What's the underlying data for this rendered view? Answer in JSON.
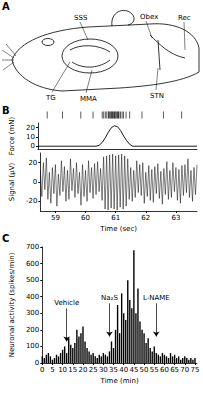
{
  "diagram": {
    "panel": "A",
    "labels": [
      "SSS",
      "Obex",
      "Rec",
      "TG",
      "MMA",
      "STN"
    ]
  },
  "chart_data": [
    {
      "panel": "B",
      "type": "raster",
      "tick_labels": false,
      "color": "#000000",
      "xlim": [
        58.5,
        63.7
      ],
      "x": [
        58.8,
        59.3,
        59.9,
        60.3,
        60.6,
        60.65,
        60.7,
        60.75,
        60.8,
        60.82,
        60.85,
        60.88,
        60.9,
        60.93,
        60.95,
        60.98,
        61.0,
        61.02,
        61.05,
        61.08,
        61.1,
        61.13,
        61.15,
        61.2,
        61.25,
        61.3,
        61.38,
        61.5,
        61.9,
        62.6,
        63.2
      ]
    },
    {
      "type": "line",
      "ylabel": "Force (mN)",
      "tick_labels": "y",
      "color": "#000000",
      "xlim": [
        58.5,
        63.7
      ],
      "ylim": [
        -3,
        25
      ],
      "yticks": [
        0,
        10,
        20
      ],
      "x": [
        58.5,
        60.4,
        60.5,
        60.6,
        60.7,
        60.8,
        60.9,
        61.0,
        61.1,
        61.2,
        61.3,
        61.4,
        61.5,
        61.6,
        63.7
      ],
      "values": [
        0,
        0,
        1,
        4,
        9,
        15,
        20,
        22,
        21,
        17,
        11,
        6,
        2,
        0,
        0
      ]
    },
    {
      "type": "line",
      "ylabel": "Signal (µV)",
      "xlabel": "Time (sec)",
      "color": "#000000",
      "xlim": [
        58.5,
        63.7
      ],
      "xticks": [
        59,
        60,
        61,
        62,
        63
      ],
      "ylim": [
        -30,
        30
      ],
      "yticks": [
        -20,
        0,
        20
      ],
      "x": [
        58.5,
        58.55,
        58.6,
        58.65,
        58.7,
        58.75,
        58.8,
        58.85,
        58.9,
        58.95,
        59.0,
        59.05,
        59.1,
        59.15,
        59.2,
        59.25,
        59.3,
        59.35,
        59.4,
        59.45,
        59.5,
        59.55,
        59.6,
        59.65,
        59.7,
        59.75,
        59.8,
        59.85,
        59.9,
        59.95,
        60.0,
        60.05,
        60.1,
        60.15,
        60.2,
        60.25,
        60.3,
        60.35,
        60.4,
        60.45,
        60.5,
        60.55,
        60.6,
        60.65,
        60.7,
        60.75,
        60.8,
        60.85,
        60.9,
        60.95,
        61.0,
        61.05,
        61.1,
        61.15,
        61.2,
        61.25,
        61.3,
        61.35,
        61.4,
        61.45,
        61.5,
        61.55,
        61.6,
        61.65,
        61.7,
        61.75,
        61.8,
        61.85,
        61.9,
        61.95,
        62.0,
        62.05,
        62.1,
        62.15,
        62.2,
        62.25,
        62.3,
        62.35,
        62.4,
        62.45,
        62.5,
        62.55,
        62.6,
        62.65,
        62.7,
        62.75,
        62.8,
        62.85,
        62.9,
        62.95,
        63.0,
        63.05,
        63.1,
        63.15,
        63.2,
        63.25,
        63.3,
        63.35,
        63.4,
        63.45,
        63.5,
        63.55,
        63.6,
        63.65,
        63.7
      ],
      "values": [
        12,
        -15,
        20,
        -8,
        25,
        -18,
        10,
        -22,
        15,
        -12,
        18,
        -25,
        8,
        -14,
        22,
        -10,
        16,
        -20,
        12,
        -18,
        24,
        -9,
        14,
        -16,
        20,
        -12,
        10,
        -24,
        18,
        -15,
        12,
        -20,
        22,
        -11,
        15,
        -17,
        19,
        -13,
        21,
        -10,
        14,
        -19,
        26,
        -28,
        27,
        -29,
        28,
        -27,
        29,
        -28,
        27,
        -29,
        28,
        -26,
        29,
        -28,
        27,
        -25,
        24,
        -18,
        15,
        -20,
        12,
        -16,
        22,
        -11,
        18,
        -14,
        20,
        -22,
        10,
        -15,
        17,
        -19,
        13,
        -21,
        16,
        -12,
        19,
        -17,
        11,
        -23,
        14,
        -13,
        21,
        -18,
        12,
        -16,
        20,
        -10,
        15,
        -19,
        13,
        -22,
        17,
        -14,
        18,
        -11,
        24,
        -16,
        12,
        -20,
        15,
        -13,
        18
      ]
    },
    {
      "panel": "C",
      "type": "bar",
      "xlabel": "Time (min)",
      "ylabel": "Neuronal activity (spikes/min)",
      "color": "#000000",
      "xlim": [
        0,
        76
      ],
      "xticks": [
        0,
        5,
        10,
        15,
        20,
        25,
        30,
        35,
        40,
        45,
        50,
        55,
        60,
        65,
        70,
        75
      ],
      "ylim": [
        0,
        700
      ],
      "yticks": [
        0,
        100,
        200,
        300,
        400,
        500,
        600,
        700
      ],
      "x": [
        0,
        1,
        2,
        3,
        4,
        5,
        6,
        7,
        8,
        9,
        10,
        11,
        12,
        13,
        14,
        15,
        16,
        17,
        18,
        19,
        20,
        21,
        22,
        23,
        24,
        25,
        26,
        27,
        28,
        29,
        30,
        31,
        32,
        33,
        34,
        35,
        36,
        37,
        38,
        39,
        40,
        41,
        42,
        43,
        44,
        45,
        46,
        47,
        48,
        49,
        50,
        51,
        52,
        53,
        54,
        55,
        56,
        57,
        58,
        59,
        60,
        61,
        62,
        63,
        64,
        65,
        66,
        67,
        68,
        69,
        70,
        71,
        72,
        73,
        74,
        75
      ],
      "values": [
        40,
        30,
        50,
        60,
        40,
        20,
        30,
        50,
        40,
        60,
        80,
        100,
        60,
        150,
        110,
        90,
        120,
        200,
        160,
        180,
        220,
        130,
        90,
        70,
        50,
        60,
        40,
        30,
        50,
        40,
        60,
        50,
        40,
        70,
        130,
        90,
        200,
        350,
        180,
        420,
        300,
        260,
        500,
        380,
        330,
        680,
        300,
        450,
        250,
        200,
        180,
        120,
        150,
        90,
        70,
        100,
        60,
        50,
        40,
        60,
        50,
        40,
        30,
        60,
        40,
        50,
        30,
        40,
        20,
        30,
        40,
        30,
        20,
        30,
        20,
        30
      ],
      "annotations": [
        {
          "text": "Vehicle",
          "x": 12,
          "y": 130,
          "text_y": 330
        },
        {
          "text": "Na₂S",
          "x": 33,
          "y": 160,
          "text_y": 360
        },
        {
          "text": "L-NAME",
          "x": 56,
          "y": 160,
          "text_y": 360
        }
      ]
    }
  ]
}
